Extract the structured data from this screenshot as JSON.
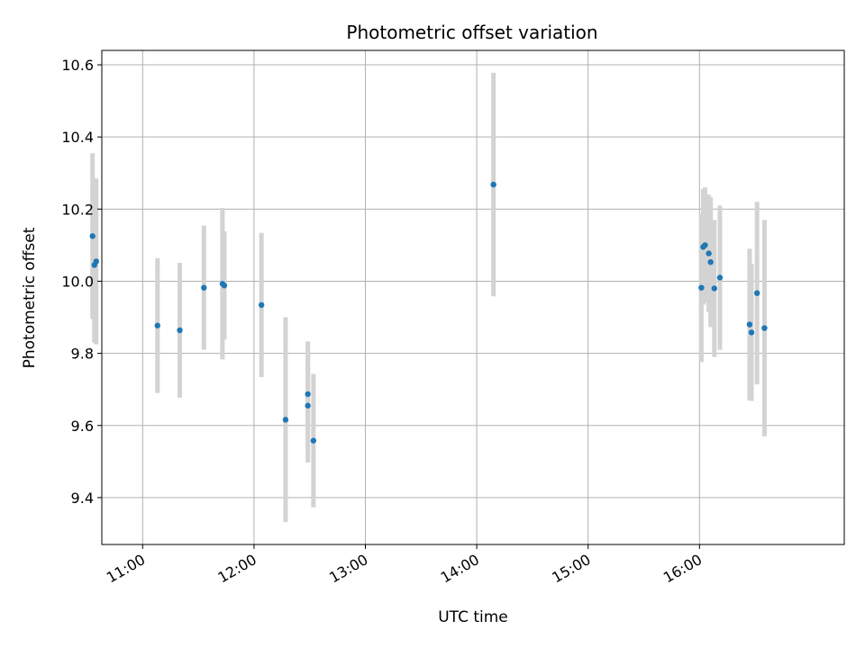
{
  "chart_data": {
    "type": "scatter",
    "title": "Photometric offset variation",
    "xlabel": "UTC time",
    "ylabel": "Photometric offset",
    "x_axis_type": "time",
    "xlim": [
      "10:38",
      "17:18"
    ],
    "ylim": [
      9.27,
      10.64
    ],
    "x_ticks": [
      "11:00",
      "12:00",
      "13:00",
      "14:00",
      "15:00",
      "16:00"
    ],
    "y_ticks": [
      9.4,
      9.6,
      9.8,
      10.0,
      10.2,
      10.4,
      10.6
    ],
    "y_tick_labels": [
      "9.4",
      "9.6",
      "9.8",
      "10.0",
      "10.2",
      "10.4",
      "10.6"
    ],
    "grid": true,
    "point_color": "#1f77b4",
    "errorbar_color": "#d3d3d3",
    "points": [
      {
        "time": "10:33",
        "y": 10.125,
        "err": 0.23
      },
      {
        "time": "10:34",
        "y": 10.045,
        "err": 0.215
      },
      {
        "time": "10:35",
        "y": 10.055,
        "err": 0.23
      },
      {
        "time": "11:08",
        "y": 9.877,
        "err": 0.187
      },
      {
        "time": "11:20",
        "y": 9.864,
        "err": 0.187
      },
      {
        "time": "11:33",
        "y": 9.982,
        "err": 0.172
      },
      {
        "time": "11:43",
        "y": 9.993,
        "err": 0.21
      },
      {
        "time": "11:44",
        "y": 9.988,
        "err": 0.15
      },
      {
        "time": "12:04",
        "y": 9.934,
        "err": 0.2
      },
      {
        "time": "12:17",
        "y": 9.616,
        "err": 0.284
      },
      {
        "time": "12:29",
        "y": 9.687,
        "err": 0.146
      },
      {
        "time": "12:29",
        "y": 9.655,
        "err": 0.158
      },
      {
        "time": "12:32",
        "y": 9.558,
        "err": 0.185
      },
      {
        "time": "14:09",
        "y": 10.268,
        "err": 0.31
      },
      {
        "time": "16:01",
        "y": 9.982,
        "err": 0.206
      },
      {
        "time": "16:02",
        "y": 10.095,
        "err": 0.16
      },
      {
        "time": "16:03",
        "y": 10.1,
        "err": 0.16
      },
      {
        "time": "16:05",
        "y": 10.077,
        "err": 0.163
      },
      {
        "time": "16:06",
        "y": 10.053,
        "err": 0.18
      },
      {
        "time": "16:08",
        "y": 9.98,
        "err": 0.19
      },
      {
        "time": "16:11",
        "y": 10.01,
        "err": 0.2
      },
      {
        "time": "16:27",
        "y": 9.88,
        "err": 0.21
      },
      {
        "time": "16:28",
        "y": 9.858,
        "err": 0.19
      },
      {
        "time": "16:31",
        "y": 9.967,
        "err": 0.253
      },
      {
        "time": "16:35",
        "y": 9.87,
        "err": 0.3
      }
    ]
  }
}
